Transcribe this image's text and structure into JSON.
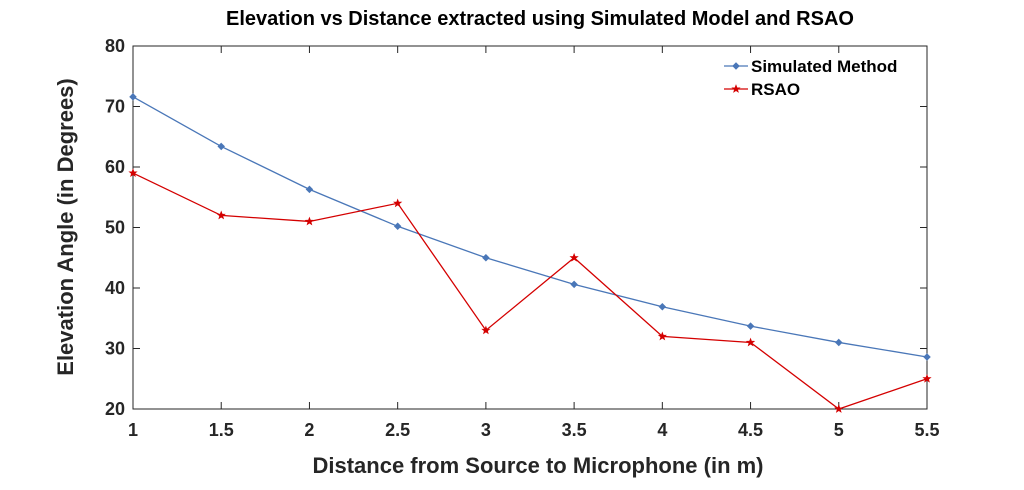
{
  "chart_data": {
    "type": "line",
    "title": "Elevation vs Distance extracted using Simulated Model and RSAO",
    "xlabel": "Distance from Source to Microphone (in m)",
    "ylabel": "Elevation Angle (in Degrees)",
    "xlim": [
      1,
      5.5
    ],
    "ylim": [
      20,
      80
    ],
    "xticks": [
      "1",
      "1.5",
      "2",
      "2.5",
      "3",
      "3.5",
      "4",
      "4.5",
      "5",
      "5.5"
    ],
    "yticks": [
      "20",
      "30",
      "40",
      "50",
      "60",
      "70",
      "80"
    ],
    "grid": false,
    "legend_position": "top-right",
    "x": [
      1,
      1.5,
      2,
      2.5,
      3,
      3.5,
      4,
      4.5,
      5,
      5.5
    ],
    "series": [
      {
        "name": "Simulated Method",
        "color": "#4a77b8",
        "marker": "diamond",
        "values": [
          71.6,
          63.4,
          56.3,
          50.2,
          45.0,
          40.6,
          36.9,
          33.7,
          31.0,
          28.6
        ]
      },
      {
        "name": "RSAO",
        "color": "#d40000",
        "marker": "star",
        "values": [
          59,
          52,
          51,
          54,
          33,
          45,
          32,
          31,
          20,
          25
        ]
      }
    ]
  }
}
